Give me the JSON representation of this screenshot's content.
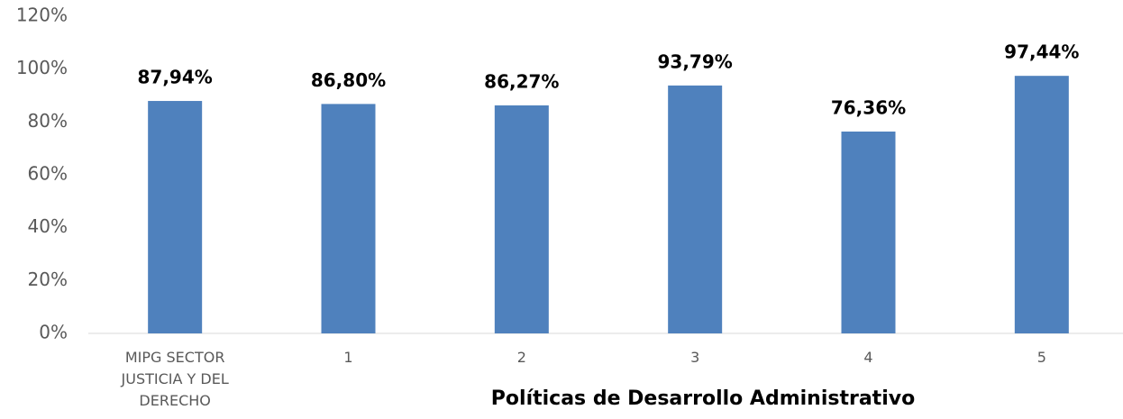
{
  "chart_data": {
    "type": "bar",
    "x_label": "Políticas de Desarrollo Administrativo",
    "categories": [
      "MIPG SECTOR JUSTICIA Y DEL DERECHO",
      "1",
      "2",
      "3",
      "4",
      "5"
    ],
    "values": [
      87.94,
      86.8,
      86.27,
      93.79,
      76.36,
      97.44
    ],
    "value_labels": [
      "87,94%",
      "86,80%",
      "86,27%",
      "93,79%",
      "76,36%",
      "97,44%"
    ],
    "color": "#4f81bd",
    "ylim": [
      0,
      120
    ],
    "yticks": [
      {
        "value": 0,
        "label": "0%"
      },
      {
        "value": 20,
        "label": "20%"
      },
      {
        "value": 40,
        "label": "40%"
      },
      {
        "value": 60,
        "label": "60%"
      },
      {
        "value": 80,
        "label": "80%"
      },
      {
        "value": 100,
        "label": "100%"
      },
      {
        "value": 120,
        "label": "120%"
      }
    ],
    "grid": false
  }
}
